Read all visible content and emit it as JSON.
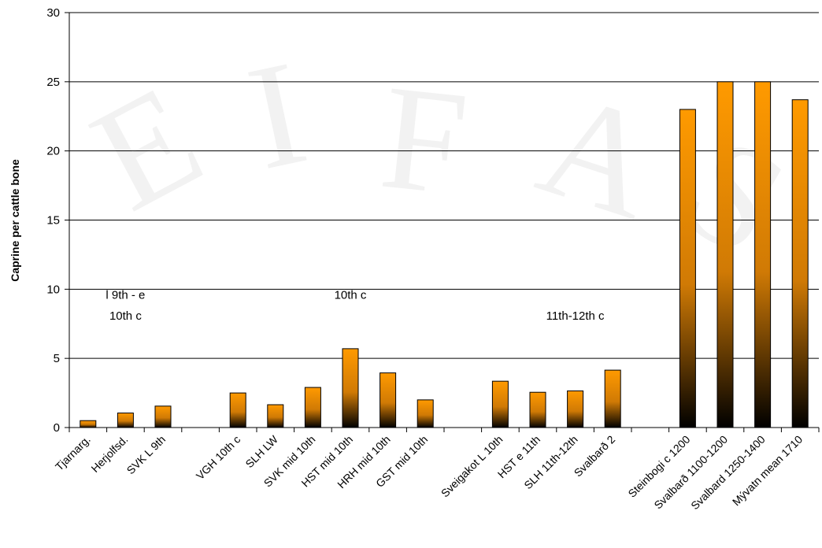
{
  "chart_data": {
    "type": "bar",
    "title": "",
    "xlabel": "",
    "ylabel": "Caprine per cattle bone",
    "ylim": [
      0,
      30
    ],
    "yticks": [
      0,
      5,
      10,
      15,
      20,
      25,
      30
    ],
    "grid": true,
    "categories": [
      "Tjarnarg.",
      "Herjolfsd.",
      "SVK L 9th",
      "",
      "VGH 10th c",
      "SLH LW",
      "SVK mid 10th",
      "HST mid 10th",
      "HRH mid 10th",
      "GST mid 10th",
      "",
      "Sveigakot L 10th",
      "HST e 11th",
      "SLH 11th-12th",
      "Svalbarð 2",
      "",
      "Steinbogi c 1200",
      "Svalbarð 1100-1200",
      "Svalbard 1250-1400",
      "Mývatn  mean 1710"
    ],
    "values": [
      0.5,
      1.05,
      1.55,
      null,
      2.5,
      1.65,
      2.9,
      5.7,
      3.95,
      2.0,
      null,
      3.35,
      2.55,
      2.65,
      4.15,
      null,
      23.0,
      25.0,
      25.0,
      23.7
    ],
    "bar_gradient": [
      "#ff9a00",
      "#000000"
    ],
    "annotations": [
      {
        "text": "l 9th - e",
        "category_index": 1,
        "y": 9.3
      },
      {
        "text": "10th c",
        "category_index": 1,
        "y": 7.8
      },
      {
        "text": "10th c",
        "category_index": 7,
        "y": 9.3
      },
      {
        "text": "11th-12th c",
        "category_index": 13,
        "y": 7.8
      }
    ]
  }
}
